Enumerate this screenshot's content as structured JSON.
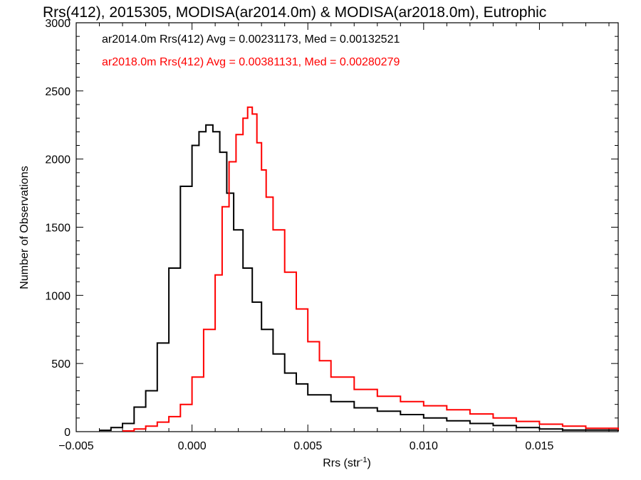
{
  "chart_data": {
    "type": "line",
    "title": "Rrs(412), 2015305, MODISA(ar2014.0m) & MODISA(ar2018.0m), Eutrophic",
    "xlabel": "Rrs (str",
    "xlabel_sup": "-1",
    "xlabel_close": ")",
    "ylabel": "Number of Observations",
    "xlim": [
      -0.005,
      0.0184
    ],
    "ylim": [
      0,
      3000
    ],
    "xticks": [
      -0.005,
      0.0,
      0.005,
      0.01,
      0.015
    ],
    "xtick_labels": [
      "−0.005",
      "0.000",
      "0.005",
      "0.010",
      "0.015"
    ],
    "yticks": [
      0,
      500,
      1000,
      1500,
      2000,
      2500,
      3000
    ],
    "ytick_labels": [
      "0",
      "500",
      "1000",
      "1500",
      "2000",
      "2500",
      "3000"
    ],
    "grid": false,
    "legend_position": "top-left",
    "step_style": "histogram",
    "series": [
      {
        "name": "ar2014.0m Rrs(412) Avg = 0.00231173, Med = 0.00132521",
        "color": "#000000",
        "x": [
          -0.004,
          -0.0035,
          -0.003,
          -0.0025,
          -0.002,
          -0.0015,
          -0.001,
          -0.0005,
          0.0,
          0.0003,
          0.0006,
          0.0009,
          0.0012,
          0.0015,
          0.0018,
          0.0022,
          0.0026,
          0.003,
          0.0035,
          0.004,
          0.0045,
          0.005,
          0.006,
          0.007,
          0.008,
          0.009,
          0.01,
          0.011,
          0.012,
          0.013,
          0.014,
          0.015,
          0.016,
          0.0184
        ],
        "y": [
          10,
          30,
          60,
          180,
          300,
          650,
          1200,
          1800,
          2100,
          2200,
          2250,
          2200,
          2050,
          1750,
          1480,
          1200,
          950,
          750,
          570,
          430,
          350,
          270,
          220,
          175,
          150,
          125,
          100,
          80,
          60,
          45,
          30,
          20,
          12,
          5
        ]
      },
      {
        "name": "ar2018.0m Rrs(412) Avg = 0.00381131, Med = 0.00280279",
        "color": "#ff0000",
        "x": [
          -0.003,
          -0.0025,
          -0.002,
          -0.0015,
          -0.001,
          -0.0005,
          0.0,
          0.0005,
          0.001,
          0.0013,
          0.0016,
          0.0019,
          0.0022,
          0.0024,
          0.0026,
          0.0028,
          0.003,
          0.0032,
          0.0035,
          0.004,
          0.0045,
          0.005,
          0.0055,
          0.006,
          0.007,
          0.008,
          0.009,
          0.01,
          0.011,
          0.012,
          0.013,
          0.014,
          0.015,
          0.016,
          0.017,
          0.0184
        ],
        "y": [
          5,
          20,
          40,
          70,
          110,
          200,
          400,
          750,
          1150,
          1650,
          1980,
          2180,
          2300,
          2380,
          2330,
          2120,
          1920,
          1720,
          1480,
          1170,
          900,
          660,
          520,
          400,
          310,
          260,
          220,
          190,
          160,
          130,
          100,
          75,
          55,
          40,
          25,
          12
        ]
      }
    ]
  }
}
